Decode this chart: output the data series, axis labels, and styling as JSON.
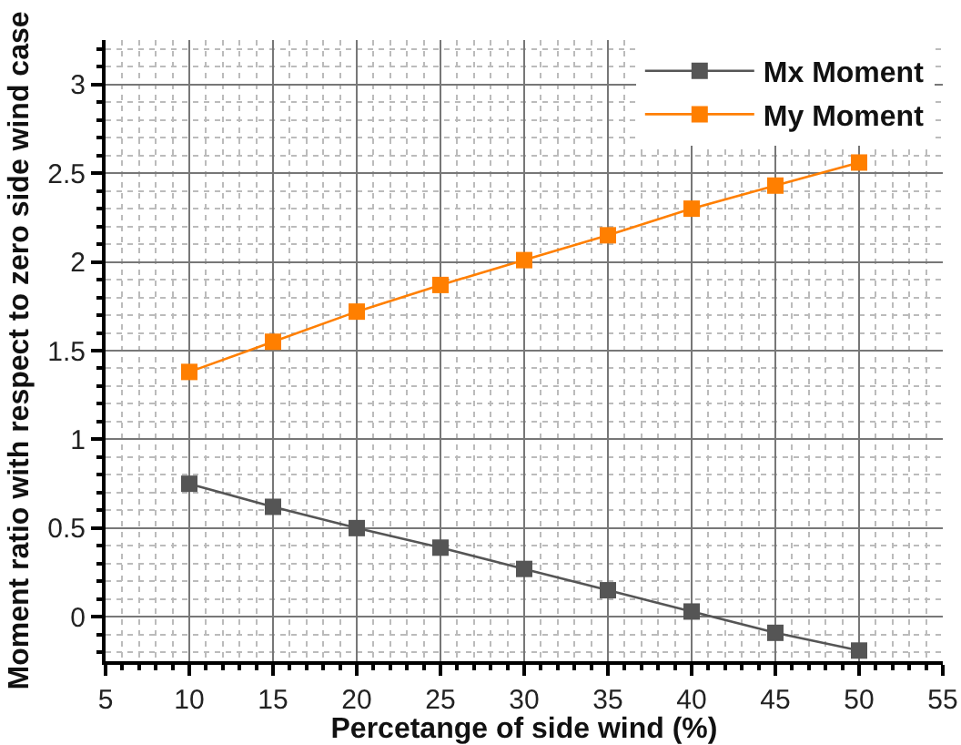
{
  "chart_data": {
    "type": "line",
    "xlabel": "Percetange of side wind (%)",
    "ylabel": "Moment ratio with respect to zero side wind case",
    "x": [
      10,
      15,
      20,
      25,
      30,
      35,
      40,
      45,
      50
    ],
    "series": [
      {
        "name": "Mx Moment",
        "color": "#555555",
        "values": [
          0.75,
          0.62,
          0.5,
          0.39,
          0.27,
          0.15,
          0.03,
          -0.09,
          -0.19
        ]
      },
      {
        "name": "My Moment",
        "color": "#ff7f00",
        "values": [
          1.38,
          1.55,
          1.72,
          1.87,
          2.01,
          2.15,
          2.3,
          2.43,
          2.56
        ]
      }
    ],
    "xlim": [
      5,
      55
    ],
    "xticks": [
      5,
      10,
      15,
      20,
      25,
      30,
      35,
      40,
      45,
      50,
      55
    ],
    "ylim": [
      -0.25,
      3.25
    ],
    "yticks": [
      0,
      0.5,
      1,
      1.5,
      2,
      2.5,
      3
    ],
    "grid": true,
    "legend": "top right",
    "marker": "square",
    "line_style": "solid"
  }
}
